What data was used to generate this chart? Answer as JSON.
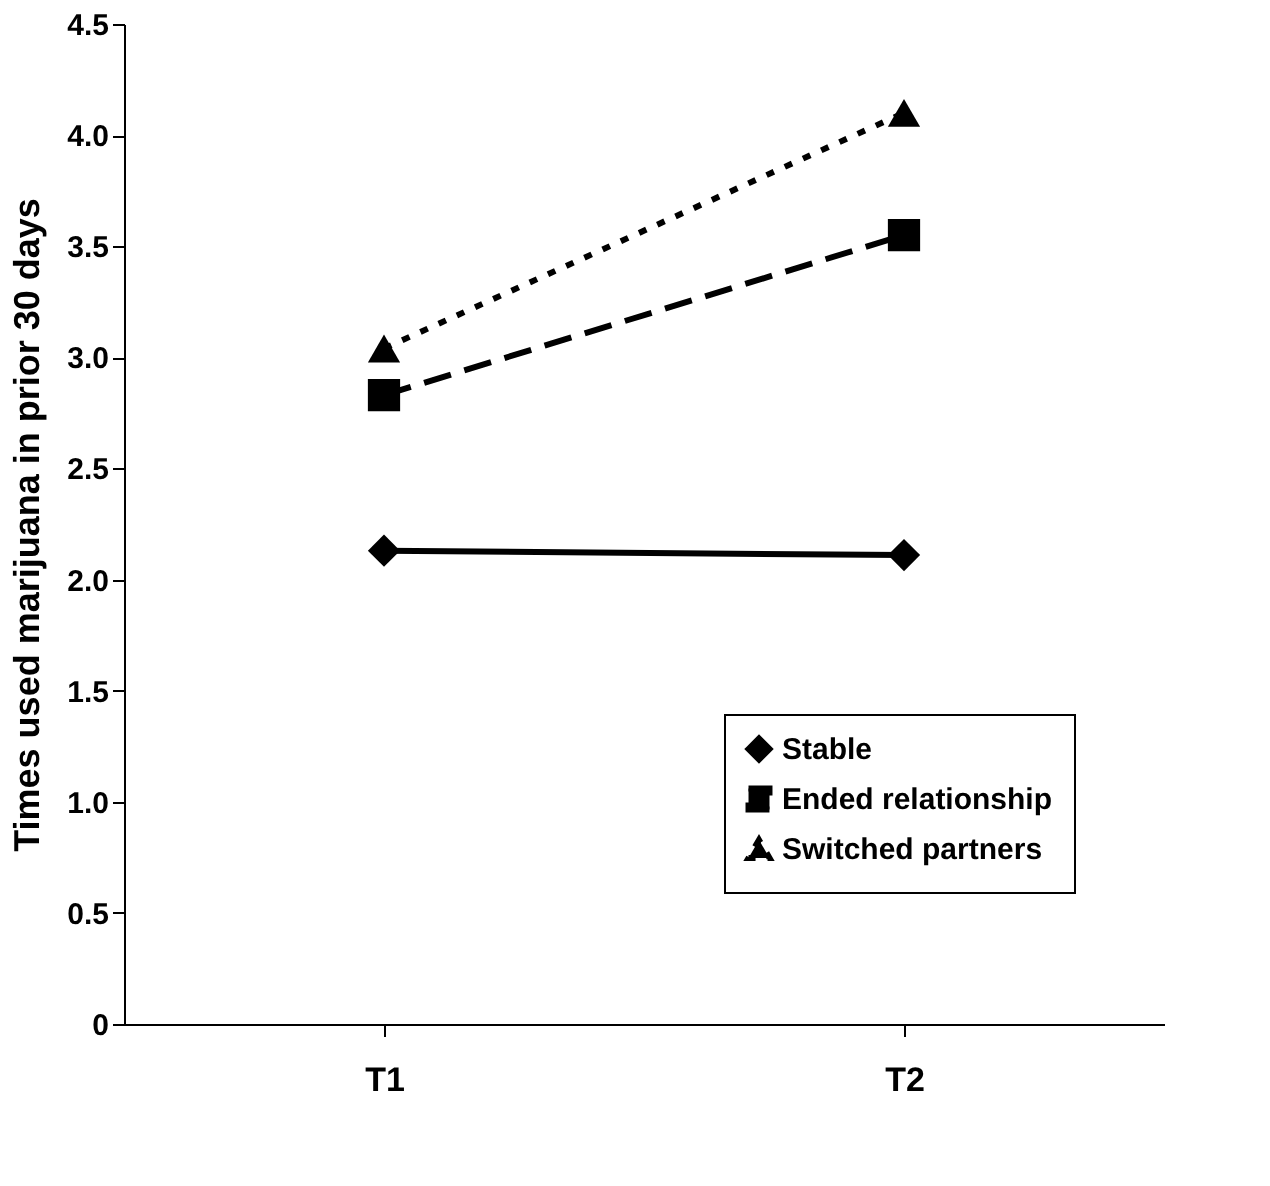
{
  "chart_data": {
    "type": "line",
    "ylabel": "Times used marijuana in prior 30 days",
    "categories": [
      "T1",
      "T2"
    ],
    "ylim": [
      0,
      4.5
    ],
    "yticks": [
      0,
      {
        "value": 0.5,
        "label": "0.5"
      },
      {
        "value": 1,
        "label": "1.0"
      },
      {
        "value": 1.5,
        "label": "1.5"
      },
      {
        "value": 2,
        "label": "2.0"
      },
      {
        "value": 2.5,
        "label": "2.5"
      },
      {
        "value": 3,
        "label": "3.0"
      },
      {
        "value": 3.5,
        "label": "3.5"
      },
      {
        "value": 4,
        "label": "4.0"
      },
      {
        "value": 4.5,
        "label": "4.5"
      }
    ],
    "grid": false,
    "legend": "bottom right",
    "series": [
      {
        "name": "Stable",
        "color": "#000000",
        "values": [
          2.13,
          2.11
        ],
        "marker": "diamond",
        "line_style": "solid"
      },
      {
        "name": "Ended relationship",
        "color": "#000000",
        "values": [
          2.83,
          3.55
        ],
        "marker": "square",
        "line_style": "dashed"
      },
      {
        "name": "Switched partners",
        "color": "#000000",
        "values": [
          3.04,
          4.1
        ],
        "marker": "triangle",
        "line_style": "dotted"
      }
    ]
  }
}
